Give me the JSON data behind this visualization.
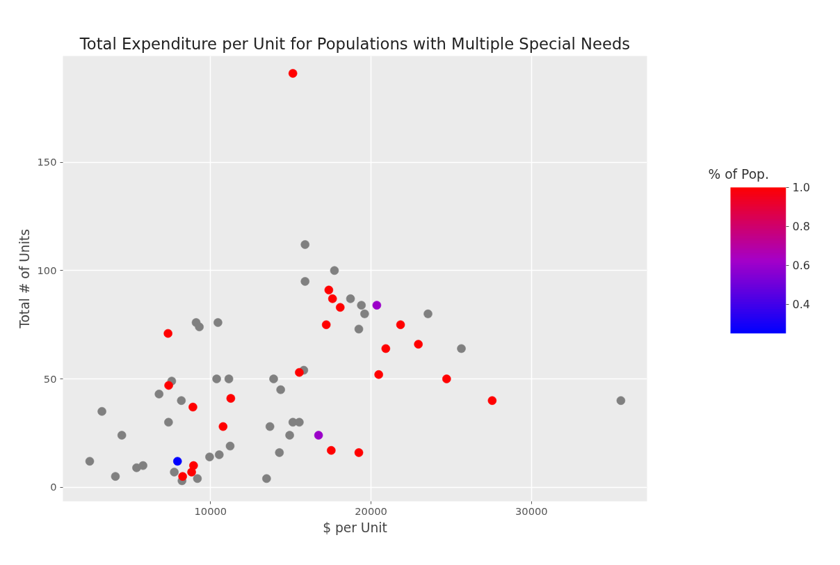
{
  "chart_data": {
    "type": "scatter",
    "title": "Total Expenditure per Unit for Populations with Multiple Special Needs",
    "xlabel": "$ per Unit",
    "ylabel": "Total # of Units",
    "clabel": "% of Pop.",
    "xlim": [
      800,
      37200
    ],
    "ylim": [
      -6.5,
      199
    ],
    "xticks": [
      10000,
      20000,
      30000
    ],
    "yticks": [
      0,
      50,
      100,
      150
    ],
    "clim": [
      0.25,
      1.0
    ],
    "cticks": [
      {
        "value": 1.0,
        "label": "1.0"
      },
      0.8,
      0.6,
      0.4
    ],
    "grid": true,
    "marker": "circle",
    "series": [
      {
        "color": "#808080",
        "x": [
          9100,
          9300,
          10460,
          7580,
          6790,
          8180,
          3230,
          7380,
          4470,
          2470,
          5390,
          5790,
          4070,
          7740,
          8220,
          9180,
          9940,
          10540,
          11220,
          10380,
          11140,
          13700,
          13490,
          17720,
          15890,
          18720,
          19400,
          19600,
          19240,
          23550,
          25630,
          15810,
          13930,
          14370,
          15130,
          15530,
          14930,
          14290,
          15890,
          35570
        ],
        "values": [
          76,
          74,
          76,
          49,
          43,
          40,
          35,
          30,
          24,
          12,
          9,
          10,
          5,
          7,
          3,
          4,
          14,
          15,
          19,
          50,
          50,
          28,
          4,
          100,
          95,
          87,
          84,
          80,
          73,
          80,
          64,
          54,
          50,
          45,
          30,
          30,
          24,
          16,
          112,
          40
        ],
        "cvalues": [
          null,
          null,
          null,
          null,
          null,
          null,
          null,
          null,
          null,
          null,
          null,
          null,
          null,
          null,
          null,
          null,
          null,
          null,
          null,
          null,
          null,
          null,
          null,
          null,
          null,
          null,
          null,
          null,
          null,
          null,
          null,
          null,
          null,
          null,
          null,
          null,
          null,
          null,
          null,
          null
        ]
      },
      {
        "colors": [
          "#ff0000",
          "#ff0000",
          "#ff0000",
          "#ff0000",
          "#ff0000",
          "#ff0000",
          "#ff0000",
          "#ff0000",
          "#0000ff",
          "#ff0000",
          "#ff0000",
          "#ff0000",
          "#ff0000",
          "#ff0000",
          "#ff0000",
          "#ff0000",
          "#ff0000",
          "#ff0000",
          "#ff0000",
          "#ff0000",
          "#ff0000",
          "#9b00c8",
          "#9b00c8",
          "#ff0000",
          "#ff0000"
        ],
        "x": [
          7350,
          7390,
          8900,
          11260,
          10780,
          8940,
          8820,
          8260,
          7940,
          17370,
          17600,
          18080,
          17210,
          21840,
          22950,
          20920,
          15530,
          20480,
          24710,
          17520,
          19240,
          20360,
          16730,
          15130,
          27550
        ],
        "values": [
          71,
          47,
          37,
          41,
          28,
          10,
          7,
          5,
          12,
          91,
          87,
          83,
          75,
          75,
          66,
          64,
          53,
          52,
          50,
          17,
          16,
          84,
          24,
          191,
          40
        ],
        "cvalues": [
          1,
          1,
          1,
          1,
          1,
          1,
          1,
          1,
          0.25,
          1,
          1,
          1,
          1,
          1,
          1,
          1,
          1,
          1,
          1,
          1,
          1,
          0.6,
          0.6,
          1,
          1
        ]
      }
    ]
  }
}
